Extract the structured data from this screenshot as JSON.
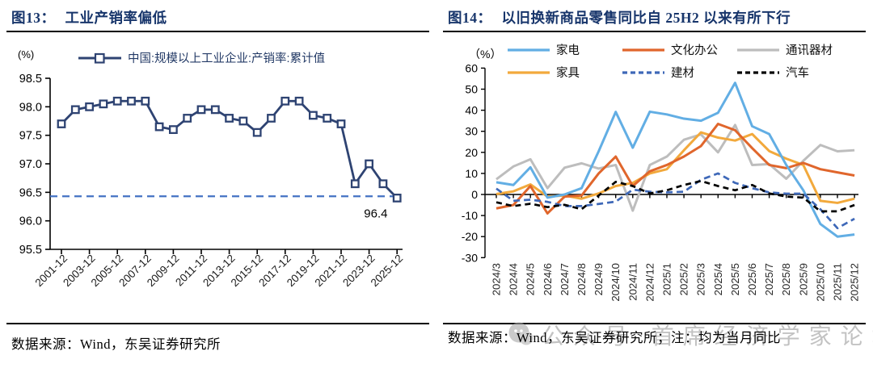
{
  "left_panel": {
    "fig_label": "图13：",
    "title": "工业产销率偏低",
    "source": "数据来源：Wind，东吴证券研究所"
  },
  "right_panel": {
    "fig_label": "图14：",
    "title": "以旧换新商品零售同比自 25H2 以来有所下行",
    "source": "数据来源：Wind，东吴证券研究所；注：均为当月同比",
    "watermark_text": "公众号 首席经济学家论坛"
  },
  "chart_data": [
    {
      "type": "line",
      "title": "工业产销率偏低",
      "unit_label": "(%)",
      "legend": [
        "中国:规模以上工业企业:产销率:累计值"
      ],
      "line_color": "#2E4372",
      "reference_color": "#4472C4",
      "x": [
        "2001-12",
        "2002-12",
        "2003-12",
        "2004-12",
        "2005-12",
        "2006-12",
        "2007-12",
        "2008-12",
        "2009-12",
        "2010-12",
        "2011-12",
        "2012-12",
        "2013-12",
        "2014-12",
        "2015-12",
        "2016-12",
        "2017-12",
        "2018-12",
        "2019-12",
        "2020-12",
        "2021-12",
        "2022-12",
        "2023-12",
        "2024-12",
        "2025-12"
      ],
      "values": [
        97.7,
        97.95,
        98.0,
        98.05,
        98.1,
        98.1,
        98.1,
        97.65,
        97.6,
        97.8,
        97.95,
        97.95,
        97.8,
        97.75,
        97.55,
        97.8,
        98.1,
        98.1,
        97.85,
        97.8,
        97.7,
        96.65,
        97.0,
        96.65,
        96.4
      ],
      "xtick_labels": [
        "2001-12",
        "2003-12",
        "2005-12",
        "2007-12",
        "2009-12",
        "2011-12",
        "2013-12",
        "2015-12",
        "2017-12",
        "2019-12",
        "2021-12",
        "2023-12",
        "2025-12"
      ],
      "yticks": [
        98.5,
        98.0,
        97.5,
        97.0,
        96.5,
        96.0,
        95.5
      ],
      "ylim": [
        95.5,
        98.5
      ],
      "reference_line": 96.43,
      "annotation": "96.4",
      "grid": false,
      "legend_position": "top"
    },
    {
      "type": "line",
      "title": "以旧换新商品零售同比自 25H2 以来有所下行",
      "unit_label": "（%）",
      "x": [
        "2024/3",
        "2024/4",
        "2024/5",
        "2024/6",
        "2024/7",
        "2024/8",
        "2024/9",
        "2024/10",
        "2024/11",
        "2024/12",
        "2025/1",
        "2025/2",
        "2025/3",
        "2025/4",
        "2025/5",
        "2025/6",
        "2025/7",
        "2025/8",
        "2025/9",
        "2025/10",
        "2025/11",
        "2025/12"
      ],
      "yticks": [
        60,
        50,
        40,
        30,
        20,
        10,
        0,
        -10,
        -20,
        -30
      ],
      "ylim": [
        -30,
        60
      ],
      "grid": false,
      "legend_position": "top",
      "series": [
        {
          "name": "家电",
          "key": "appliances",
          "color": "#62AEE4",
          "dash": null,
          "values": [
            5.8,
            4.5,
            12.9,
            -1.5,
            0,
            3,
            20.5,
            39.2,
            22.2,
            39.3,
            38,
            36,
            35,
            38.8,
            53,
            32.4,
            28.7,
            14,
            2,
            -14,
            -20,
            -19
          ]
        },
        {
          "name": "文化办公",
          "key": "culture-office",
          "color": "#E0662C",
          "dash": null,
          "values": [
            -6.6,
            -5,
            4,
            -9,
            -1,
            -0.5,
            10,
            18,
            4,
            11,
            14,
            18,
            23,
            33.5,
            30.5,
            22,
            14,
            12.5,
            15,
            12,
            10.5,
            9
          ]
        },
        {
          "name": "通讯器材",
          "key": "telecom",
          "color": "#BDBDBD",
          "dash": null,
          "values": [
            7.2,
            13.3,
            16.7,
            3,
            12.7,
            14.8,
            12.3,
            14,
            -7.7,
            14,
            18,
            26,
            28.5,
            20,
            33,
            14,
            14.4,
            7.5,
            16,
            23.5,
            20.5,
            21
          ]
        },
        {
          "name": "家具",
          "key": "furniture",
          "color": "#F2A93C",
          "dash": null,
          "values": [
            0.2,
            1.5,
            4.8,
            -1,
            -0.5,
            -2,
            0.5,
            4,
            5.5,
            10,
            12,
            21,
            29.5,
            27,
            25.6,
            28.7,
            20.6,
            17,
            14,
            -3,
            -4,
            -2
          ]
        },
        {
          "name": "建材",
          "key": "building-materials",
          "color": "#3E68B8",
          "dash": "8,5",
          "values": [
            2.8,
            -3,
            -2.5,
            -3.5,
            -5.5,
            -5.5,
            -4.5,
            -3.4,
            2.3,
            1.3,
            1,
            1.3,
            7,
            10,
            5.5,
            3,
            1,
            0.4,
            0.4,
            -7,
            -16,
            -11.5
          ]
        },
        {
          "name": "汽车",
          "key": "auto",
          "color": "#000000",
          "dash": "7,5",
          "values": [
            -3.7,
            -5.5,
            -4.4,
            -6,
            -4.9,
            -7,
            -0.5,
            6,
            4,
            0.5,
            2,
            4.5,
            6.4,
            4,
            2,
            4.5,
            0.5,
            -1,
            -1.5,
            -8,
            -8,
            -5
          ]
        }
      ],
      "legend_rows": [
        [
          "家电",
          "文化办公",
          "通讯器材"
        ],
        [
          "家具",
          "建材",
          "汽车"
        ]
      ],
      "draw_order": [
        "telecom",
        "furniture",
        "culture-office",
        "appliances",
        "building-materials",
        "auto"
      ]
    }
  ]
}
